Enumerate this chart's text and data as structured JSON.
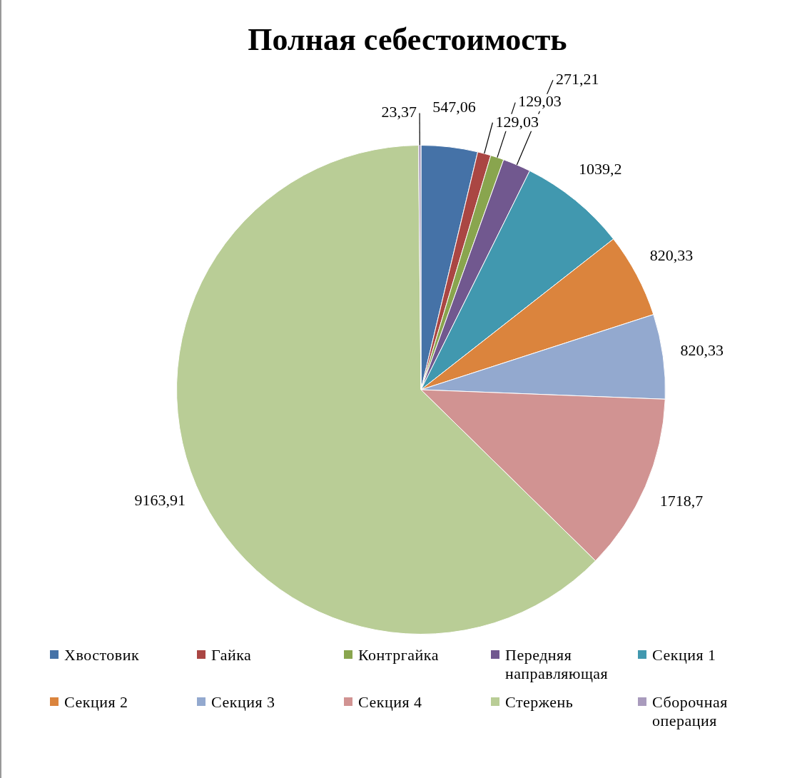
{
  "chart_data": {
    "type": "pie",
    "title": "Полная себестоимость",
    "categories": [
      "Хвостовик",
      "Гайка",
      "Контргайка",
      "Передняя направляющая",
      "Секция 1",
      "Секция 2",
      "Секция 3",
      "Секция 4",
      "Стержень",
      "Сборочная операция"
    ],
    "values": [
      547.06,
      129.03,
      129.03,
      271.21,
      1039.2,
      820.33,
      820.33,
      1718.7,
      9163.91,
      23.37
    ],
    "value_labels": [
      "547,06",
      "129,03",
      "129,03",
      "271,21",
      "1039,2",
      "820,33",
      "820,33",
      "1718,7",
      "9163,91",
      "23,37"
    ],
    "colors": [
      "#4572a7",
      "#aa4643",
      "#89a54e",
      "#71588f",
      "#4198af",
      "#db843d",
      "#93a9cf",
      "#d19392",
      "#b9cd96",
      "#a99bbd"
    ],
    "legend": "bottom"
  }
}
